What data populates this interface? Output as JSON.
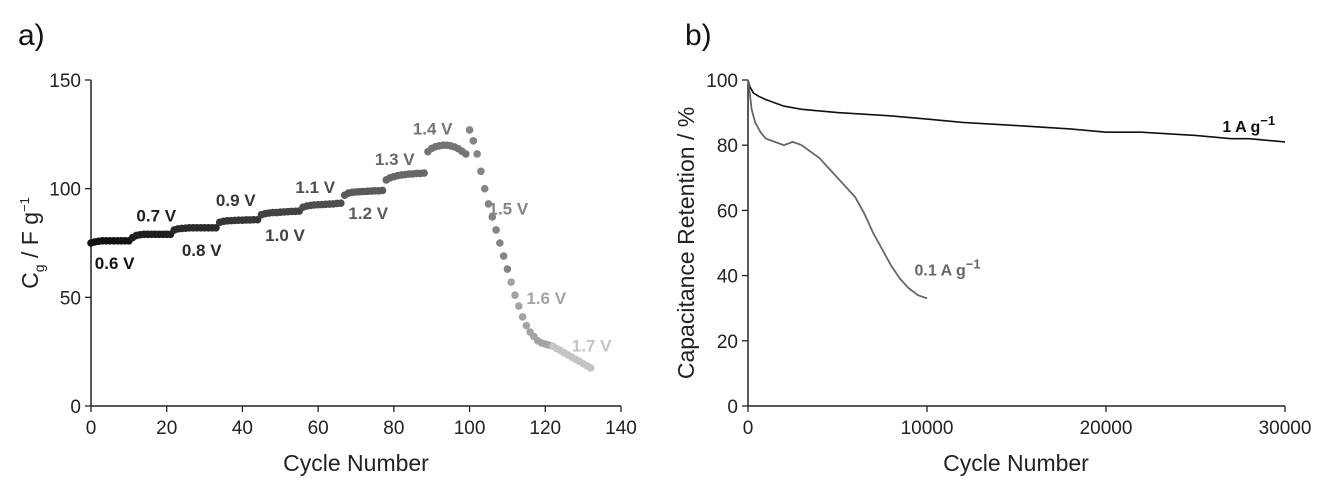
{
  "chart_data": [
    {
      "panel": "a)",
      "type": "scatter",
      "xlabel": "Cycle Number",
      "ylabel": {
        "main": "C",
        "sub": "g",
        "unit": " / F g",
        "sup": "−1"
      },
      "xlim": [
        0,
        140
      ],
      "ylim": [
        0,
        150
      ],
      "xticks": [
        "0",
        "20",
        "40",
        "60",
        "80",
        "100",
        "120",
        "140"
      ],
      "yticks": [
        "0",
        "50",
        "100",
        "150"
      ],
      "grid": false,
      "series": [
        {
          "label": "0.6 V",
          "color": "#111111",
          "points": [
            [
              0,
              75
            ],
            [
              1,
              75.5
            ],
            [
              2,
              75.8
            ],
            [
              3,
              76
            ],
            [
              4,
              76
            ],
            [
              5,
              76
            ],
            [
              6,
              76
            ],
            [
              7,
              76
            ],
            [
              8,
              76
            ],
            [
              9,
              76
            ],
            [
              10,
              76
            ]
          ]
        },
        {
          "label": "0.7 V",
          "color": "#1f1f1f",
          "points": [
            [
              11,
              77.5
            ],
            [
              12,
              78.5
            ],
            [
              13,
              78.8
            ],
            [
              14,
              79
            ],
            [
              15,
              79
            ],
            [
              16,
              79
            ],
            [
              17,
              79
            ],
            [
              18,
              79
            ],
            [
              19,
              79
            ],
            [
              20,
              79
            ],
            [
              21,
              79
            ]
          ]
        },
        {
          "label": "0.8 V",
          "color": "#2b2b2b",
          "points": [
            [
              22,
              81
            ],
            [
              23,
              81.5
            ],
            [
              24,
              81.7
            ],
            [
              25,
              81.8
            ],
            [
              26,
              82
            ],
            [
              27,
              82
            ],
            [
              28,
              82
            ],
            [
              29,
              82
            ],
            [
              30,
              82
            ],
            [
              31,
              82
            ],
            [
              32,
              82
            ],
            [
              33,
              82
            ]
          ]
        },
        {
          "label": "0.9 V",
          "color": "#363636",
          "points": [
            [
              34,
              84.5
            ],
            [
              35,
              85
            ],
            [
              36,
              85.2
            ],
            [
              37,
              85.3
            ],
            [
              38,
              85.4
            ],
            [
              39,
              85.5
            ],
            [
              40,
              85.5
            ],
            [
              41,
              85.6
            ],
            [
              42,
              85.6
            ],
            [
              43,
              85.7
            ],
            [
              44,
              85.7
            ]
          ]
        },
        {
          "label": "1.0 V",
          "color": "#424242",
          "points": [
            [
              45,
              88
            ],
            [
              46,
              88.5
            ],
            [
              47,
              88.8
            ],
            [
              48,
              89
            ],
            [
              49,
              89
            ],
            [
              50,
              89.2
            ],
            [
              51,
              89.3
            ],
            [
              52,
              89.4
            ],
            [
              53,
              89.5
            ],
            [
              54,
              89.6
            ],
            [
              55,
              89.7
            ]
          ]
        },
        {
          "label": "1.1 V",
          "color": "#4e4e4e",
          "points": [
            [
              56,
              91.5
            ],
            [
              57,
              92
            ],
            [
              58,
              92.3
            ],
            [
              59,
              92.5
            ],
            [
              60,
              92.6
            ],
            [
              61,
              92.7
            ],
            [
              62,
              92.8
            ],
            [
              63,
              92.9
            ],
            [
              64,
              93
            ],
            [
              65,
              93.2
            ],
            [
              66,
              93.3
            ]
          ]
        },
        {
          "label": "1.2 V",
          "color": "#5a5a5a",
          "points": [
            [
              67,
              97
            ],
            [
              68,
              98
            ],
            [
              69,
              98.3
            ],
            [
              70,
              98.5
            ],
            [
              71,
              98.6
            ],
            [
              72,
              98.7
            ],
            [
              73,
              98.8
            ],
            [
              74,
              98.9
            ],
            [
              75,
              99
            ],
            [
              76,
              99
            ],
            [
              77,
              99.2
            ]
          ]
        },
        {
          "label": "1.3 V",
          "color": "#676767",
          "points": [
            [
              78,
              104
            ],
            [
              79,
              105
            ],
            [
              80,
              105.5
            ],
            [
              81,
              106
            ],
            [
              82,
              106.3
            ],
            [
              83,
              106.5
            ],
            [
              84,
              106.7
            ],
            [
              85,
              106.8
            ],
            [
              86,
              107
            ],
            [
              87,
              107
            ],
            [
              88,
              107.2
            ]
          ]
        },
        {
          "label": "1.4 V",
          "color": "#747474",
          "points": [
            [
              89,
              117
            ],
            [
              90,
              118.5
            ],
            [
              91,
              119.3
            ],
            [
              92,
              119.7
            ],
            [
              93,
              120
            ],
            [
              94,
              120
            ],
            [
              95,
              119.7
            ],
            [
              96,
              119.2
            ],
            [
              97,
              118.4
            ],
            [
              98,
              117.2
            ],
            [
              99,
              116
            ]
          ]
        },
        {
          "label": "1.5 V",
          "color": "#848484",
          "points": [
            [
              100,
              127
            ],
            [
              101,
              122
            ],
            [
              102,
              116
            ],
            [
              103,
              108
            ],
            [
              104,
              100
            ],
            [
              105,
              93
            ],
            [
              106,
              87
            ],
            [
              107,
              81
            ],
            [
              108,
              75
            ],
            [
              109,
              69
            ],
            [
              110,
              63
            ]
          ]
        },
        {
          "label": "1.6 V",
          "color": "#a3a3a3",
          "points": [
            [
              111,
              57
            ],
            [
              112,
              51
            ],
            [
              113,
              46
            ],
            [
              114,
              41
            ],
            [
              115,
              37
            ],
            [
              116,
              34
            ],
            [
              117,
              32
            ],
            [
              118,
              30
            ],
            [
              119,
              29
            ],
            [
              120,
              28.5
            ],
            [
              121,
              28
            ]
          ]
        },
        {
          "label": "1.7 V",
          "color": "#c4c4c4",
          "points": [
            [
              122,
              27.5
            ],
            [
              123,
              26.5
            ],
            [
              124,
              25.5
            ],
            [
              125,
              24.5
            ],
            [
              126,
              23.5
            ],
            [
              127,
              22.5
            ],
            [
              128,
              21.5
            ],
            [
              129,
              20.5
            ],
            [
              130,
              19.5
            ],
            [
              131,
              18.5
            ],
            [
              132,
              17.5
            ]
          ]
        }
      ]
    },
    {
      "panel": "b)",
      "type": "line",
      "xlabel": "Cycle Number",
      "ylabel": "Capacitance Retention / %",
      "xlim": [
        0,
        30000
      ],
      "ylim": [
        0,
        100
      ],
      "xticks": [
        "0",
        "10000",
        "20000",
        "30000"
      ],
      "yticks": [
        "0",
        "20",
        "40",
        "60",
        "80",
        "100"
      ],
      "grid": false,
      "series": [
        {
          "label": "1 A g",
          "sup": "−1",
          "color": "#111111",
          "x": [
            0,
            100,
            300,
            600,
            1000,
            2000,
            3000,
            5000,
            8000,
            10000,
            12000,
            15000,
            18000,
            20000,
            22000,
            25000,
            27000,
            28000,
            30000
          ],
          "y": [
            100,
            98,
            96,
            95,
            94,
            92,
            91,
            90,
            89,
            88,
            87,
            86,
            85,
            84,
            84,
            83,
            82,
            82,
            81
          ]
        },
        {
          "label": "0.1 A g",
          "sup": "−1",
          "color": "#666666",
          "x": [
            0,
            100,
            200,
            400,
            700,
            1000,
            1500,
            2000,
            2500,
            3000,
            3500,
            4000,
            4500,
            5000,
            5500,
            6000,
            6500,
            7000,
            7500,
            8000,
            8500,
            9000,
            9500,
            10000
          ],
          "y": [
            100,
            96,
            91,
            87,
            84,
            82,
            81,
            80,
            81,
            80,
            78,
            76,
            73,
            70,
            67,
            64,
            59,
            53,
            48,
            43,
            39,
            36,
            34,
            33
          ]
        }
      ]
    }
  ]
}
